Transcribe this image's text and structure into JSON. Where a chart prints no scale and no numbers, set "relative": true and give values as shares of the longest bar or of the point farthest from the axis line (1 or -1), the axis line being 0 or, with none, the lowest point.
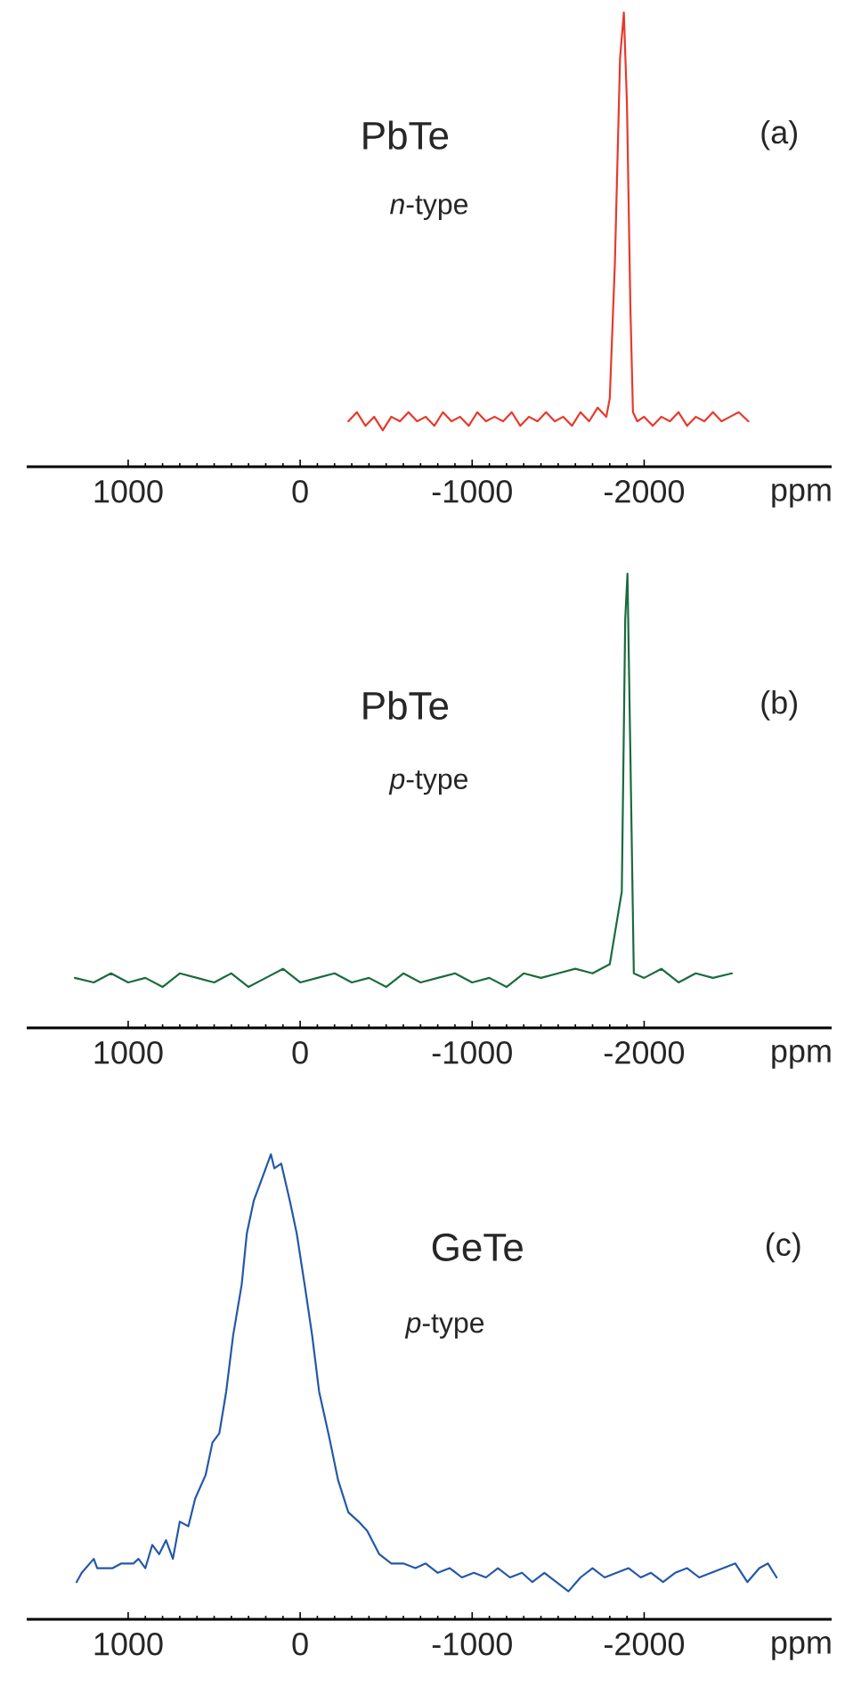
{
  "chart_data": [
    {
      "type": "line",
      "relative": true,
      "color": "#e8392b",
      "xlabel": "ppm",
      "xlim": [
        1590,
        -3090
      ],
      "xticks": [
        1000,
        0,
        -1000,
        -2000
      ],
      "annotations": [
        "PbTe",
        "*n*-type",
        "(a)"
      ],
      "x": [
        -280,
        -330,
        -380,
        -430,
        -480,
        -530,
        -580,
        -630,
        -680,
        -730,
        -780,
        -830,
        -880,
        -930,
        -980,
        -1030,
        -1080,
        -1130,
        -1180,
        -1230,
        -1280,
        -1330,
        -1380,
        -1430,
        -1480,
        -1530,
        -1580,
        -1630,
        -1680,
        -1730,
        -1780,
        -1800,
        -1830,
        -1860,
        -1882,
        -1900,
        -1920,
        -1935,
        -1960,
        -2000,
        -2050,
        -2100,
        -2150,
        -2200,
        -2250,
        -2300,
        -2350,
        -2400,
        -2450,
        -2500,
        -2550,
        -2606
      ],
      "values": [
        0.1,
        0.12,
        0.09,
        0.11,
        0.08,
        0.11,
        0.1,
        0.12,
        0.1,
        0.11,
        0.09,
        0.12,
        0.1,
        0.11,
        0.09,
        0.12,
        0.1,
        0.11,
        0.1,
        0.12,
        0.09,
        0.11,
        0.1,
        0.12,
        0.1,
        0.11,
        0.09,
        0.12,
        0.1,
        0.13,
        0.11,
        0.15,
        0.45,
        0.9,
        1.0,
        0.8,
        0.35,
        0.12,
        0.1,
        0.11,
        0.09,
        0.11,
        0.1,
        0.12,
        0.09,
        0.11,
        0.1,
        0.12,
        0.1,
        0.11,
        0.12,
        0.1
      ]
    },
    {
      "type": "line",
      "relative": true,
      "color": "#1a6b3e",
      "xlabel": "ppm",
      "xlim": [
        1590,
        -3090
      ],
      "xticks": [
        1000,
        0,
        -1000,
        -2000
      ],
      "annotations": [
        "PbTe",
        "*p*-type",
        "(b)"
      ],
      "x": [
        1310,
        1200,
        1100,
        1000,
        900,
        800,
        700,
        600,
        500,
        400,
        300,
        200,
        100,
        0,
        -100,
        -200,
        -300,
        -400,
        -500,
        -600,
        -700,
        -800,
        -900,
        -1000,
        -1100,
        -1200,
        -1300,
        -1400,
        -1500,
        -1600,
        -1700,
        -1800,
        -1870,
        -1890,
        -1903,
        -1920,
        -1940,
        -2000,
        -2100,
        -2200,
        -2300,
        -2400,
        -2510
      ],
      "values": [
        0.11,
        0.1,
        0.12,
        0.1,
        0.11,
        0.09,
        0.12,
        0.11,
        0.1,
        0.12,
        0.09,
        0.11,
        0.13,
        0.1,
        0.11,
        0.12,
        0.1,
        0.11,
        0.09,
        0.12,
        0.1,
        0.11,
        0.12,
        0.1,
        0.11,
        0.09,
        0.12,
        0.11,
        0.12,
        0.13,
        0.12,
        0.14,
        0.3,
        0.9,
        1.0,
        0.6,
        0.12,
        0.11,
        0.13,
        0.1,
        0.12,
        0.11,
        0.12
      ]
    },
    {
      "type": "line",
      "relative": true,
      "color": "#2458a8",
      "xlabel": "ppm",
      "xlim": [
        1590,
        -3090
      ],
      "xticks": [
        1000,
        0,
        -1000,
        -2000
      ],
      "annotations": [
        "GeTe",
        "*p*-type",
        "(c)"
      ],
      "x": [
        1300,
        1270,
        1200,
        1180,
        1090,
        1040,
        970,
        940,
        900,
        860,
        820,
        780,
        740,
        700,
        650,
        610,
        550,
        510,
        470,
        430,
        390,
        340,
        310,
        270,
        230,
        200,
        170,
        150,
        110,
        60,
        20,
        -30,
        -70,
        -110,
        -170,
        -220,
        -280,
        -340,
        -390,
        -460,
        -530,
        -600,
        -670,
        -730,
        -800,
        -870,
        -940,
        -1010,
        -1080,
        -1150,
        -1220,
        -1290,
        -1350,
        -1420,
        -1490,
        -1560,
        -1630,
        -1700,
        -1770,
        -1840,
        -1910,
        -1980,
        -2040,
        -2110,
        -2180,
        -2250,
        -2320,
        -2390,
        -2460,
        -2530,
        -2600,
        -2670,
        -2720,
        -2770
      ],
      "values": [
        0.08,
        0.1,
        0.13,
        0.11,
        0.11,
        0.12,
        0.12,
        0.13,
        0.11,
        0.16,
        0.14,
        0.17,
        0.13,
        0.21,
        0.2,
        0.26,
        0.31,
        0.38,
        0.4,
        0.49,
        0.61,
        0.72,
        0.83,
        0.9,
        0.94,
        0.97,
        1.0,
        0.97,
        0.98,
        0.9,
        0.83,
        0.71,
        0.61,
        0.49,
        0.39,
        0.3,
        0.23,
        0.21,
        0.19,
        0.14,
        0.12,
        0.12,
        0.11,
        0.12,
        0.1,
        0.11,
        0.09,
        0.1,
        0.09,
        0.11,
        0.09,
        0.1,
        0.08,
        0.1,
        0.08,
        0.06,
        0.09,
        0.11,
        0.09,
        0.1,
        0.11,
        0.09,
        0.1,
        0.08,
        0.1,
        0.11,
        0.09,
        0.1,
        0.11,
        0.12,
        0.08,
        0.11,
        0.12,
        0.09
      ]
    }
  ]
}
